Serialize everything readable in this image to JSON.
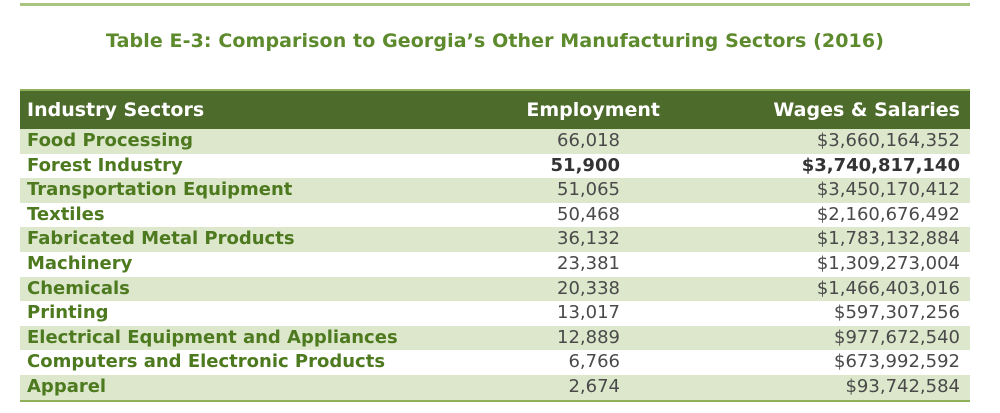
{
  "caption": "Table E-3: Comparison to Georgia’s Other Manufacturing Sectors (2016)",
  "columns": {
    "sector": "Industry Sectors",
    "employment": "Employment",
    "wages": "Wages & Salaries"
  },
  "rows": [
    {
      "sector": "Food Processing",
      "employment": "66,018",
      "wages": "$3,660,164,352",
      "bold": false
    },
    {
      "sector": "Forest Industry",
      "employment": "51,900",
      "wages": "$3,740,817,140",
      "bold": true
    },
    {
      "sector": "Transportation Equipment",
      "employment": "51,065",
      "wages": "$3,450,170,412",
      "bold": false
    },
    {
      "sector": "Textiles",
      "employment": "50,468",
      "wages": "$2,160,676,492",
      "bold": false
    },
    {
      "sector": "Fabricated Metal Products",
      "employment": "36,132",
      "wages": "$1,783,132,884",
      "bold": false
    },
    {
      "sector": "Machinery",
      "employment": "23,381",
      "wages": "$1,309,273,004",
      "bold": false
    },
    {
      "sector": "Chemicals",
      "employment": "20,338",
      "wages": "$1,466,403,016",
      "bold": false
    },
    {
      "sector": "Printing",
      "employment": "13,017",
      "wages": "$597,307,256",
      "bold": false
    },
    {
      "sector": "Electrical Equipment and Appliances",
      "employment": "12,889",
      "wages": "$977,672,540",
      "bold": false
    },
    {
      "sector": "Computers and Electronic Products",
      "employment": "6,766",
      "wages": "$673,992,592",
      "bold": false
    },
    {
      "sector": "Apparel",
      "employment": "2,674",
      "wages": "$93,742,584",
      "bold": false
    }
  ],
  "colors": {
    "header_bg": "#4d6b2a",
    "stripe_bg": "#dde7cc",
    "caption_text": "#5c8a2c",
    "sector_text": "#4d7a1f"
  }
}
